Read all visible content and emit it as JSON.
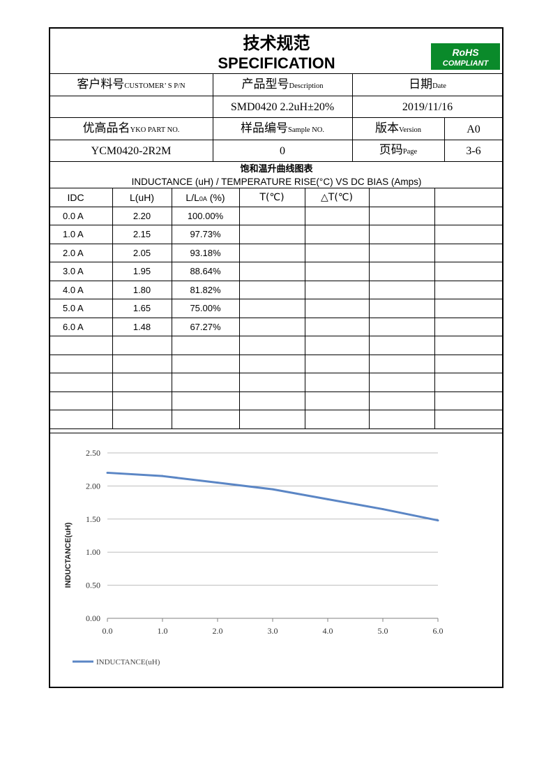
{
  "header": {
    "title_cn": "技术规范",
    "title_en": "SPECIFICATION",
    "rohs_label": "RoHS",
    "rohs_sub": "COMPLIANT",
    "rohs_color": "#0a8a2a"
  },
  "info": {
    "customer_pn_label_cn": "客户料号",
    "customer_pn_label_en": "CUSTOMER’ S P/N",
    "customer_pn_value": "",
    "description_label_cn": "产品型号",
    "description_label_en": "Description",
    "description_value": "SMD0420 2.2uH±20%",
    "date_label_cn": "日期",
    "date_label_en": "Date",
    "date_value": "2019/11/16",
    "part_no_label_cn": "优高品名",
    "part_no_label_en": "YKO PART NO.",
    "part_no_value": "YCM0420-2R2M",
    "sample_no_label_cn": "样品编号",
    "sample_no_label_en": "Sample NO.",
    "sample_no_value": "0",
    "version_label_cn": "版本",
    "version_label_en": "Version",
    "version_value": "A0",
    "page_label_cn": "页码",
    "page_label_en": "Page",
    "page_value": "3-6"
  },
  "section": {
    "title_cn": "饱和温升曲线图表",
    "title_en": "INDUCTANCE (uH)  / TEMPERATURE RISE(°C) VS DC BIAS (Amps)"
  },
  "table": {
    "headers": [
      "IDC",
      "L(uH)",
      "L/L0A (%)",
      "T(℃)",
      "△T(℃)",
      "",
      ""
    ],
    "rows": [
      [
        "0.0  A",
        "2.20",
        "100.00%"
      ],
      [
        "1.0  A",
        "2.15",
        "97.73%"
      ],
      [
        "2.0  A",
        "2.05",
        "93.18%"
      ],
      [
        "3.0  A",
        "1.95",
        "88.64%"
      ],
      [
        "4.0  A",
        "1.80",
        "81.82%"
      ],
      [
        "5.0  A",
        "1.65",
        "75.00%"
      ],
      [
        "6.0  A",
        "1.48",
        "67.27%"
      ]
    ]
  },
  "chart_data": {
    "type": "line",
    "x": [
      0,
      1,
      2,
      3,
      4,
      5,
      6
    ],
    "series": [
      {
        "name": "INDUCTANCE(uH)",
        "values": [
          2.2,
          2.15,
          2.05,
          1.95,
          1.8,
          1.65,
          1.48
        ],
        "color": "#5b86c5"
      }
    ],
    "xticks": [
      "0.0",
      "1.0",
      "2.0",
      "3.0",
      "4.0",
      "5.0",
      "6.0"
    ],
    "yticks": [
      "0.00",
      "0.50",
      "1.00",
      "1.50",
      "2.00",
      "2.50"
    ],
    "xlim": [
      0,
      6
    ],
    "ylim": [
      0,
      2.5
    ],
    "ylabel": "INDUCTANCE(uH)",
    "xlabel": "",
    "grid": true,
    "legend_position": "bottom-left"
  }
}
